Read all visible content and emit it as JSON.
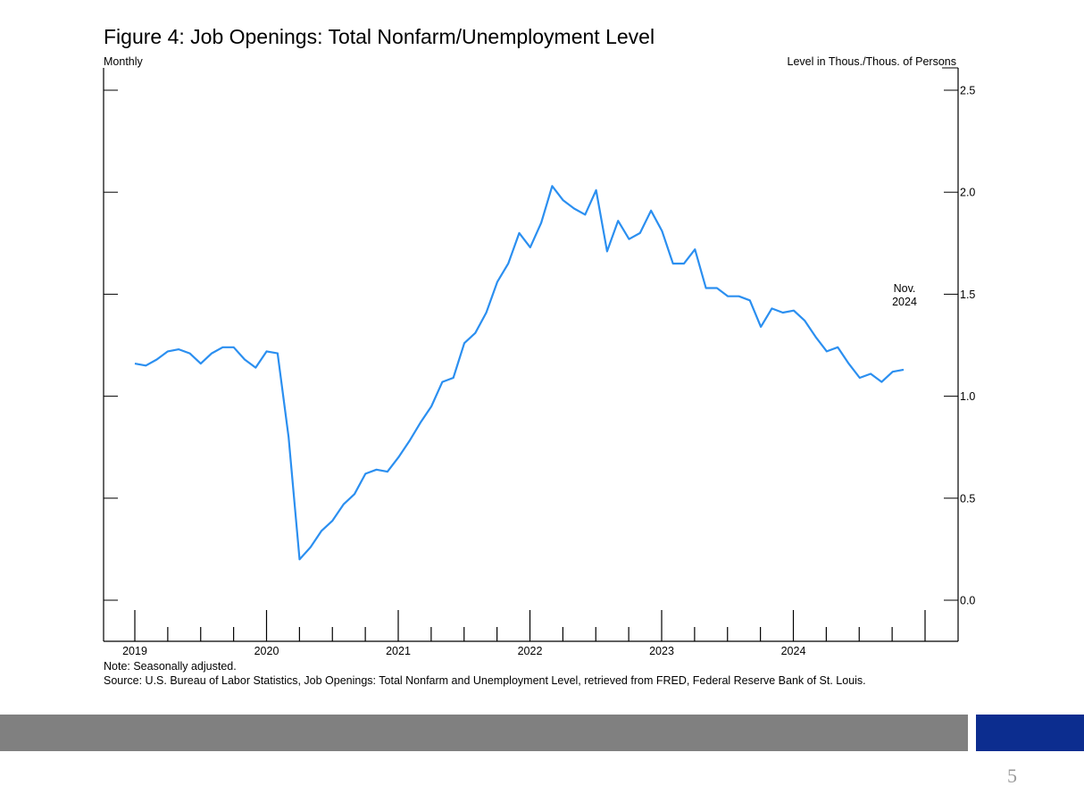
{
  "slide": {
    "title": "Figure 4: Job Openings: Total Nonfarm/Unemployment Level",
    "left_unit": "Monthly",
    "right_unit": "Level in Thous./Thous. of Persons",
    "note": "Note: Seasonally adjusted.",
    "source": "Source: U.S. Bureau of Labor Statistics, Job Openings: Total Nonfarm and Unemployment Level, retrieved from FRED, Federal Reserve Bank of St. Louis.",
    "page_number": "5",
    "colors": {
      "line": "#2b8ff0",
      "footer_gray": "#808080",
      "footer_blue": "#0c2d8f"
    }
  },
  "chart_data": {
    "type": "line",
    "title": "Figure 4: Job Openings: Total Nonfarm/Unemployment Level",
    "xlabel": "",
    "ylabel": "Level in Thous./Thous. of Persons",
    "frequency": "Monthly",
    "ylim": [
      -0.2,
      2.6
    ],
    "yticks": [
      0.0,
      0.5,
      1.0,
      1.5,
      2.0,
      2.5
    ],
    "ytick_labels": [
      "0.0",
      "0.5",
      "1.0",
      "1.5",
      "2.0",
      "2.5"
    ],
    "xtick_labels": [
      "2019",
      "2020",
      "2021",
      "2022",
      "2023",
      "2024"
    ],
    "x_start": "2019-01",
    "x_end": "2024-11",
    "grid": false,
    "annotation": {
      "line1": "Nov.",
      "line2": "2024"
    },
    "series": [
      {
        "values": [
          1.16,
          1.15,
          1.18,
          1.22,
          1.23,
          1.21,
          1.16,
          1.21,
          1.24,
          1.24,
          1.18,
          1.14,
          1.22,
          1.21,
          0.8,
          0.2,
          0.26,
          0.34,
          0.39,
          0.47,
          0.52,
          0.62,
          0.64,
          0.63,
          0.7,
          0.78,
          0.87,
          0.95,
          1.07,
          1.09,
          1.26,
          1.31,
          1.41,
          1.56,
          1.65,
          1.8,
          1.73,
          1.85,
          2.03,
          1.96,
          1.92,
          1.89,
          2.01,
          1.71,
          1.86,
          1.77,
          1.8,
          1.91,
          1.81,
          1.65,
          1.65,
          1.72,
          1.53,
          1.53,
          1.49,
          1.49,
          1.47,
          1.34,
          1.43,
          1.41,
          1.42,
          1.37,
          1.29,
          1.22,
          1.24,
          1.16,
          1.09,
          1.11,
          1.07,
          1.12,
          1.13
        ]
      }
    ]
  }
}
